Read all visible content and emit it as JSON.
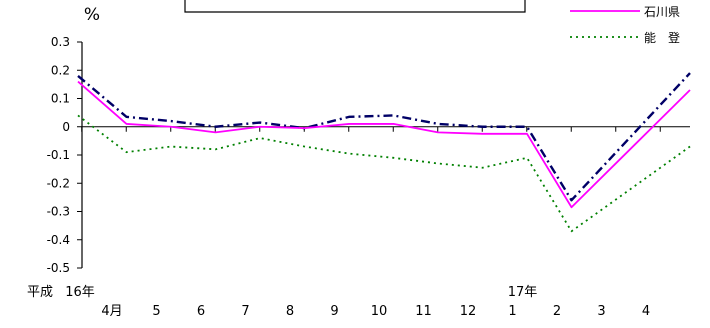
{
  "chart_data": {
    "type": "line",
    "ylabel": "%",
    "ylim": [
      -0.5,
      0.3
    ],
    "yticks": [
      "0.3",
      "0.2",
      "0.1",
      "0",
      "-0.1",
      "-0.2",
      "-0.3",
      "-0.4",
      "-0.5"
    ],
    "categories": [
      "4月",
      "5",
      "6",
      "7",
      "8",
      "9",
      "10",
      "11",
      "12",
      "1",
      "2",
      "3",
      "4"
    ],
    "era_label": "平成",
    "year_labels": [
      {
        "text": "16年",
        "category_index": 0
      },
      {
        "text": "17年",
        "category_index": 9
      }
    ],
    "grid": false,
    "legend_position": "top-right",
    "series": [
      {
        "name": "",
        "color": "#000066",
        "style": "dash-dot",
        "values": [
          0.18,
          0.035,
          0.02,
          0.0,
          0.015,
          -0.005,
          0.035,
          0.04,
          0.01,
          0.0,
          0.0,
          -0.26,
          0.19
        ]
      },
      {
        "name": "石川県",
        "color": "#ff00ff",
        "style": "solid",
        "values": [
          0.16,
          0.01,
          0.0,
          -0.02,
          0.0,
          -0.005,
          0.01,
          0.01,
          -0.02,
          -0.025,
          -0.025,
          -0.285,
          0.13
        ]
      },
      {
        "name": "能　登",
        "color": "#008000",
        "style": "dotted",
        "values": [
          0.04,
          -0.09,
          -0.07,
          -0.08,
          -0.04,
          -0.07,
          -0.095,
          -0.11,
          -0.13,
          -0.145,
          -0.11,
          -0.37,
          -0.07
        ]
      }
    ]
  }
}
